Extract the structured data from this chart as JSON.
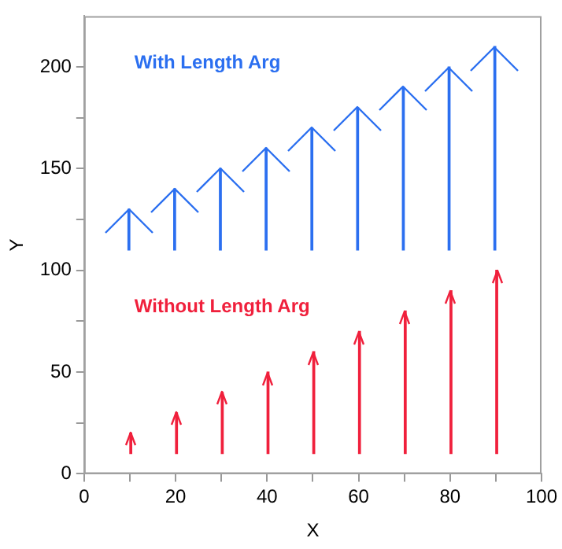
{
  "chart_data": {
    "type": "bar",
    "xlabel": "X",
    "ylabel": "Y",
    "xlim": [
      0,
      100
    ],
    "ylim": [
      0,
      225
    ],
    "xticks": [
      0,
      {
        "value": 10,
        "label": null
      },
      20,
      {
        "value": 30,
        "label": null
      },
      40,
      {
        "value": 50,
        "label": null
      },
      60,
      {
        "value": 70,
        "label": null
      },
      80,
      {
        "value": 90,
        "label": null
      },
      100
    ],
    "yticks": [
      0,
      {
        "value": 25,
        "label": null
      },
      50,
      {
        "value": 75,
        "label": null
      },
      100,
      {
        "value": 125,
        "label": null
      },
      150,
      {
        "value": 175,
        "label": null
      },
      200
    ],
    "grid": false,
    "legend": false,
    "series": [
      {
        "name": "With Length Arg",
        "color": "#2b6ff0",
        "x": [
          10,
          20,
          30,
          40,
          50,
          60,
          70,
          80,
          90
        ],
        "base": [
          110,
          110,
          110,
          110,
          110,
          110,
          110,
          110,
          110
        ],
        "values": [
          20,
          30,
          40,
          50,
          60,
          70,
          80,
          90,
          100
        ]
      },
      {
        "name": "Without Length Arg",
        "color": "#f0203c",
        "x": [
          10,
          20,
          30,
          40,
          50,
          60,
          70,
          80,
          90
        ],
        "base": [
          10,
          10,
          10,
          10,
          10,
          10,
          10,
          10,
          10
        ],
        "values": [
          10,
          20,
          30,
          40,
          50,
          60,
          70,
          80,
          90
        ]
      }
    ]
  }
}
